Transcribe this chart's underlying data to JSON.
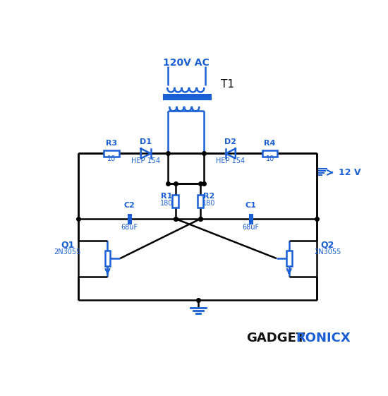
{
  "bg_color": "#ffffff",
  "cc": "#1a5fd4",
  "wc": "#000000",
  "label_120V": "120V AC",
  "label_T1": "T1",
  "label_12V": "12 V",
  "label_Q1": "Q1",
  "label_Q1_sub": "2N3055",
  "label_Q2": "Q2",
  "label_Q2_sub": "2N3055",
  "label_R1": "R1",
  "label_R1_val": "180",
  "label_R2": "R2",
  "label_R2_val": "180",
  "label_R3": "R3",
  "label_R3_val": "10",
  "label_R4": "R4",
  "label_R4_val": "10",
  "label_C1": "C1",
  "label_C1_val": "68uF",
  "label_C2": "C2",
  "label_C2_val": "68uF",
  "label_D1": "D1",
  "label_D1_val": "HEP 154",
  "label_D2": "D2",
  "label_D2_val": "HEP 154",
  "gadget_text": "GADGET",
  "ronicx_text": "RONICX"
}
